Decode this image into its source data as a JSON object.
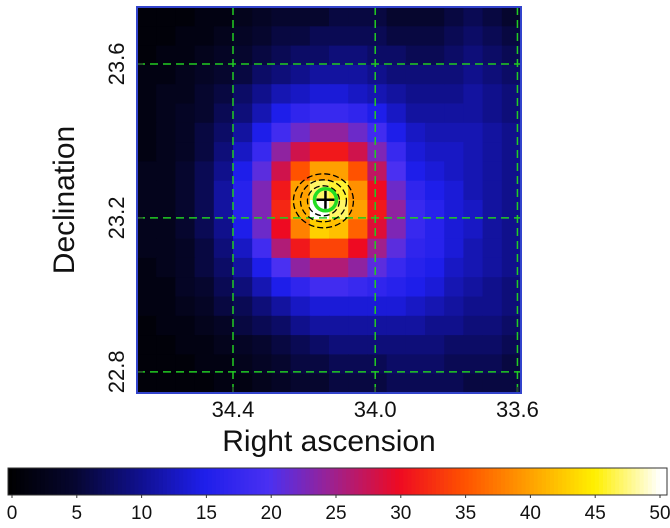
{
  "chart_data": {
    "type": "heatmap",
    "xlabel": "Right ascension",
    "ylabel": "Declination",
    "xlim": [
      34.67,
      33.59
    ],
    "ylim": [
      22.745,
      23.748
    ],
    "xticks": [
      {
        "value": 34.4,
        "label": "34.4"
      },
      {
        "value": 34.0,
        "label": "34.0"
      },
      {
        "value": 33.6,
        "label": "33.6"
      }
    ],
    "yticks": [
      22.8,
      23.2,
      23.6
    ],
    "grid": true,
    "grid_color": "#22cc22",
    "frame_color": "#3344cc",
    "zlim": [
      0,
      50
    ],
    "zticks": [
      0,
      5,
      10,
      15,
      20,
      25,
      30,
      35,
      40,
      45,
      50
    ],
    "colormap": [
      "#000000",
      "#06062e",
      "#10108c",
      "#1e1eea",
      "#4a30f2",
      "#a0208c",
      "#ee0a22",
      "#ff5200",
      "#ffa000",
      "#fff000",
      "#ffffff"
    ],
    "source": {
      "x": 34.14,
      "y": 23.247,
      "color": "#22dd22"
    },
    "z": [
      [
        1,
        1,
        1,
        2,
        2,
        3,
        4,
        5,
        5,
        5,
        6,
        6,
        6,
        5,
        5,
        5,
        6,
        7,
        6,
        5
      ],
      [
        1,
        1,
        2,
        2,
        3,
        4,
        5,
        6,
        6,
        7,
        7,
        7,
        7,
        6,
        6,
        6,
        7,
        8,
        7,
        6
      ],
      [
        1,
        2,
        2,
        3,
        4,
        5,
        6,
        7,
        8,
        8,
        9,
        9,
        8,
        8,
        7,
        7,
        8,
        9,
        8,
        7
      ],
      [
        2,
        2,
        3,
        4,
        5,
        6,
        8,
        9,
        10,
        11,
        11,
        11,
        10,
        9,
        9,
        9,
        9,
        10,
        9,
        8
      ],
      [
        2,
        3,
        3,
        5,
        6,
        8,
        10,
        12,
        13,
        14,
        14,
        13,
        12,
        11,
        10,
        10,
        10,
        11,
        10,
        9
      ],
      [
        2,
        3,
        4,
        5,
        7,
        9,
        12,
        15,
        17,
        18,
        18,
        17,
        15,
        13,
        11,
        11,
        11,
        11,
        10,
        9
      ],
      [
        2,
        3,
        4,
        6,
        8,
        11,
        15,
        19,
        22,
        24,
        24,
        22,
        19,
        15,
        13,
        12,
        12,
        12,
        11,
        10
      ],
      [
        2,
        3,
        4,
        6,
        9,
        13,
        18,
        24,
        28,
        31,
        31,
        28,
        23,
        18,
        14,
        13,
        13,
        12,
        11,
        10
      ],
      [
        3,
        3,
        5,
        7,
        10,
        15,
        21,
        28,
        35,
        40,
        40,
        35,
        27,
        20,
        15,
        14,
        13,
        12,
        11,
        10
      ],
      [
        3,
        3,
        5,
        7,
        11,
        16,
        23,
        31,
        40,
        47,
        46,
        39,
        30,
        22,
        17,
        15,
        14,
        12,
        11,
        10
      ],
      [
        3,
        3,
        5,
        7,
        11,
        16,
        23,
        32,
        41,
        50,
        47,
        40,
        31,
        24,
        18,
        16,
        14,
        13,
        11,
        10
      ],
      [
        3,
        3,
        5,
        7,
        10,
        15,
        22,
        30,
        38,
        43,
        42,
        36,
        29,
        23,
        18,
        16,
        14,
        13,
        11,
        10
      ],
      [
        3,
        3,
        4,
        6,
        9,
        13,
        19,
        26,
        31,
        34,
        34,
        30,
        25,
        21,
        17,
        16,
        14,
        12,
        11,
        10
      ],
      [
        2,
        3,
        4,
        6,
        8,
        11,
        15,
        20,
        24,
        26,
        26,
        24,
        21,
        18,
        16,
        15,
        13,
        12,
        11,
        10
      ],
      [
        2,
        2,
        4,
        5,
        7,
        9,
        12,
        15,
        17,
        19,
        19,
        18,
        17,
        16,
        15,
        14,
        12,
        11,
        10,
        9
      ],
      [
        2,
        2,
        3,
        4,
        6,
        7,
        9,
        11,
        13,
        14,
        14,
        14,
        14,
        14,
        13,
        12,
        11,
        10,
        10,
        9
      ],
      [
        1,
        2,
        2,
        3,
        4,
        6,
        7,
        8,
        10,
        11,
        11,
        11,
        11,
        11,
        11,
        10,
        10,
        9,
        9,
        8
      ],
      [
        1,
        1,
        2,
        2,
        3,
        4,
        5,
        6,
        7,
        8,
        9,
        9,
        9,
        9,
        9,
        9,
        8,
        8,
        8,
        7
      ],
      [
        1,
        1,
        1,
        2,
        2,
        3,
        4,
        5,
        6,
        6,
        7,
        7,
        7,
        8,
        8,
        8,
        7,
        7,
        7,
        6
      ],
      [
        1,
        1,
        1,
        1,
        2,
        2,
        3,
        4,
        5,
        5,
        6,
        6,
        6,
        7,
        7,
        7,
        7,
        6,
        6,
        6
      ]
    ]
  }
}
